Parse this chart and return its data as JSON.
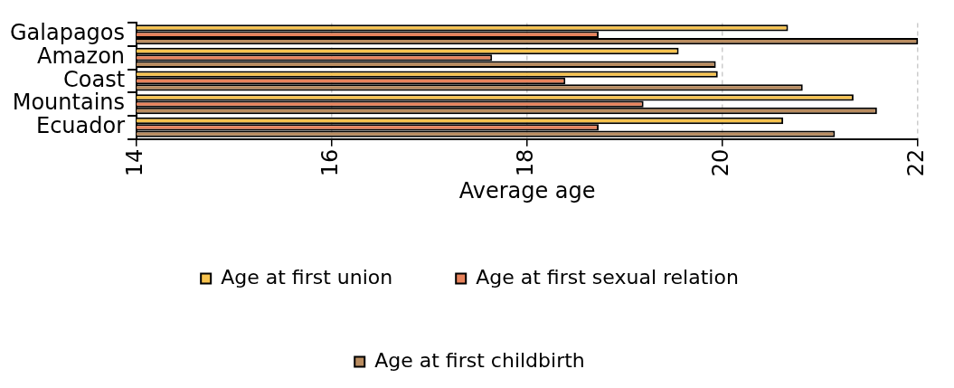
{
  "chart_data": {
    "type": "bar",
    "orientation": "horizontal",
    "xlabel": "Average age",
    "categories": [
      "Galapagos",
      "Amazon",
      "Coast",
      "Mountains",
      "Ecuador"
    ],
    "series": [
      {
        "name": "Age at first union",
        "color": "#f7c34e",
        "values": [
          20.67,
          19.55,
          19.95,
          21.34,
          20.62
        ]
      },
      {
        "name": "Age at first sexual relation",
        "color": "#e8835c",
        "values": [
          18.73,
          17.64,
          18.39,
          19.19,
          18.73
        ]
      },
      {
        "name": "Age at first childbirth",
        "color": "#b98c60",
        "values": [
          22.0,
          19.93,
          20.82,
          21.58,
          21.15
        ]
      }
    ],
    "xlim": [
      14,
      22
    ],
    "xticks": [
      14,
      16,
      18,
      20,
      22
    ],
    "grid": "x",
    "legend": "bottom"
  }
}
